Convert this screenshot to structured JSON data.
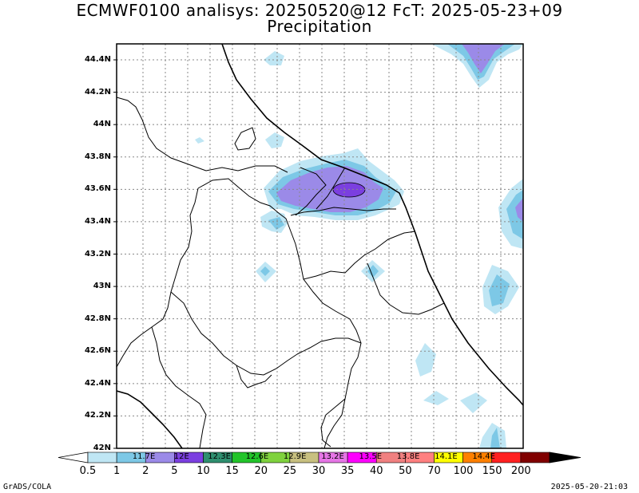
{
  "title": {
    "line1": "ECMWF0100 analisys: 20250520@12 FcT: 2025-05-23+09",
    "line2": "Precipitation"
  },
  "map": {
    "lat_labels": [
      "44.4N",
      "44.2N",
      "44N",
      "43.8N",
      "43.6N",
      "43.4N",
      "43.2N",
      "43N",
      "42.8N",
      "42.6N",
      "42.4N",
      "42.2N",
      "42N"
    ],
    "lon_labels_on_bar": [
      "11.7E",
      "12E",
      "12.3E",
      "12.6E",
      "12.9E",
      "13.2E",
      "13.5E",
      "13.8E",
      "14.1E",
      "14.4E"
    ]
  },
  "colorbar": {
    "tick_labels": [
      "0.5",
      "1",
      "2",
      "5",
      "10",
      "15",
      "20",
      "25",
      "30",
      "35",
      "40",
      "50",
      "70",
      "100",
      "150",
      "200"
    ],
    "colors": [
      "#ffffff",
      "#bfe6f4",
      "#7dc8e6",
      "#9b8ae8",
      "#7b3fe0",
      "#2f8f6f",
      "#22c42a",
      "#7fd23e",
      "#c8c080",
      "#e676e6",
      "#ff00ff",
      "#f08080",
      "#ff8080",
      "#ffff00",
      "#ff8000",
      "#ff2020",
      "#800000",
      "#000000"
    ]
  },
  "footer": {
    "left": "GrADS/COLA",
    "right": "2025-05-20-21:03"
  }
}
